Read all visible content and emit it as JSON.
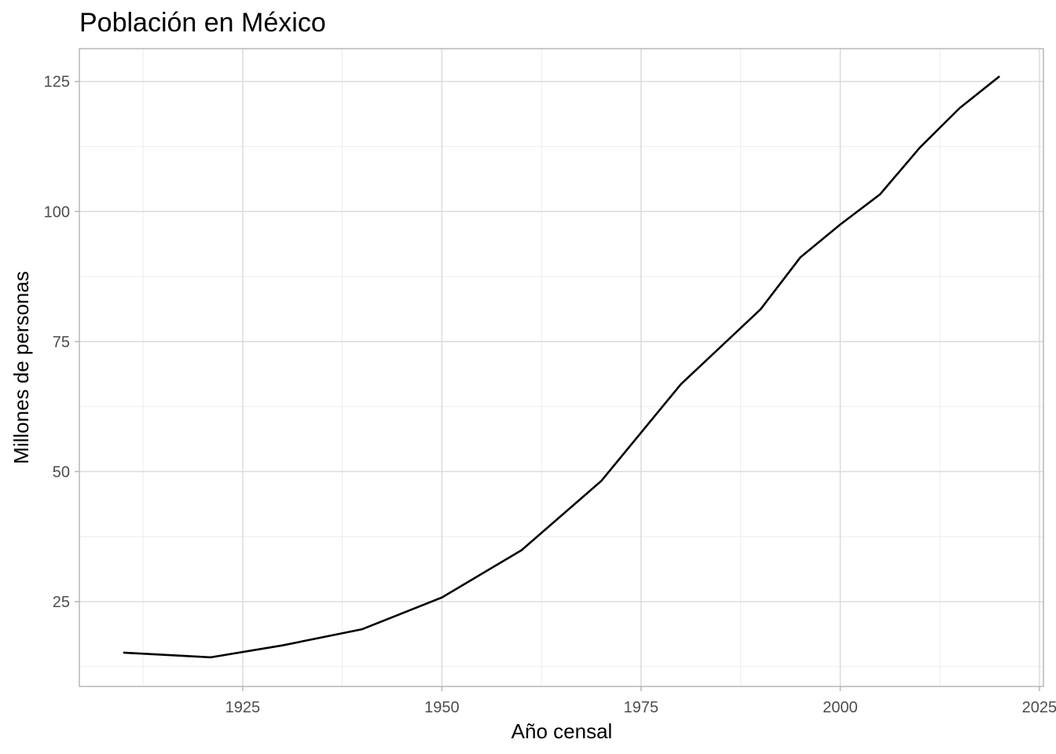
{
  "chart_data": {
    "type": "line",
    "title": "Población en México",
    "xlabel": "Año censal",
    "ylabel": "Millones de personas",
    "xlim": [
      1904.5,
      2025.5
    ],
    "ylim": [
      8.7,
      131.3
    ],
    "x_ticks": [
      1925,
      1950,
      1975,
      2000,
      2025
    ],
    "y_ticks": [
      25,
      50,
      75,
      100,
      125
    ],
    "x_minor_ticks": [
      1912.5,
      1937.5,
      1962.5,
      1987.5,
      2012.5
    ],
    "y_minor_ticks": [
      12.5,
      37.5,
      62.5,
      87.5,
      112.5
    ],
    "grid": true,
    "line_color": "#000000",
    "x": [
      1910,
      1921,
      1930,
      1940,
      1950,
      1960,
      1970,
      1980,
      1990,
      1995,
      2000,
      2005,
      2010,
      2015,
      2020
    ],
    "y": [
      15.2,
      14.3,
      16.6,
      19.7,
      25.8,
      34.9,
      48.2,
      66.8,
      81.2,
      91.2,
      97.5,
      103.3,
      112.3,
      119.9,
      126.0
    ]
  }
}
